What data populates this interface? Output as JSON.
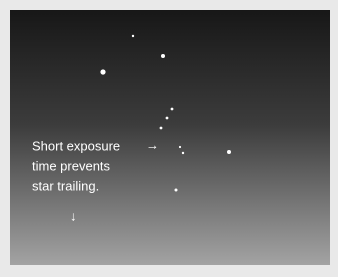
{
  "annotation": {
    "lines": [
      "Short exposure",
      "time prevents",
      "star trailing."
    ],
    "arrow_right": "→",
    "arrow_down": "↓"
  }
}
